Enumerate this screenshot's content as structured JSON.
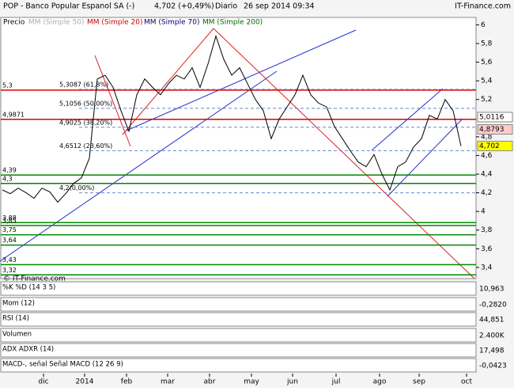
{
  "header": {
    "symbol": "POP - Banco Popular Espanol SA (-)",
    "quote": "4,702 (+0,49%)",
    "period": "Diario",
    "datetime": "26 sep 2014 09:34",
    "brand": "IT-Finance.com"
  },
  "legend": [
    "Precio",
    "MM (Simple 50)",
    "MM (Simple 20)",
    "MM (Simple 70)",
    "MM (Simple 200)"
  ],
  "watermark": "© IT-Finance.com",
  "chart_data": {
    "type": "line",
    "series": [
      {
        "name": "Precio",
        "color": "#000000",
        "values": [
          4.23,
          4.19,
          4.25,
          4.2,
          4.14,
          4.25,
          4.21,
          4.1,
          4.19,
          4.3,
          4.36,
          4.57,
          5.42,
          5.46,
          5.33,
          5.08,
          4.86,
          5.25,
          5.42,
          5.33,
          5.25,
          5.37,
          5.46,
          5.42,
          5.54,
          5.33,
          5.58,
          5.88,
          5.63,
          5.46,
          5.54,
          5.37,
          5.2,
          5.08,
          4.78,
          4.99,
          5.12,
          5.25,
          5.46,
          5.25,
          5.16,
          5.12,
          4.91,
          4.78,
          4.65,
          4.53,
          4.48,
          4.61,
          4.4,
          4.23,
          4.48,
          4.53,
          4.69,
          4.78,
          5.03,
          4.99,
          5.2,
          5.08,
          4.7
        ]
      }
    ],
    "ylim": [
      3.28,
      6.08
    ],
    "yticks": [
      {
        "value": 3.4,
        "label": "3,4"
      },
      {
        "value": 3.6,
        "label": "3,6"
      },
      {
        "value": 3.8,
        "label": "3,8"
      },
      4,
      {
        "value": 4.2,
        "label": "4,2"
      },
      {
        "value": 4.4,
        "label": "4,4"
      },
      {
        "value": 4.6,
        "label": "4,6"
      },
      {
        "value": 4.8,
        "label": "4,8"
      },
      {
        "value": 5.2,
        "label": "5,2"
      },
      {
        "value": 5.4,
        "label": "5,4"
      },
      {
        "value": 5.6,
        "label": "5,6"
      },
      {
        "value": 5.8,
        "label": "5,8"
      },
      6
    ],
    "xlabels": [
      "dic",
      "2014",
      "feb",
      "mar",
      "abr",
      "may",
      "jun",
      "jul",
      "ago",
      "sep",
      "oct"
    ],
    "levels": [
      {
        "value": 5.3,
        "label": "5,3",
        "color": "#dd0000"
      },
      {
        "value": 4.9871,
        "label": "4,9871",
        "color": "#dd0000"
      },
      {
        "value": 4.39,
        "label": "4,39",
        "color": "#008800"
      },
      {
        "value": 4.3,
        "label": "4,3",
        "color": "#008800"
      },
      {
        "value": 3.88,
        "label": "3,88",
        "color": "#008800"
      },
      {
        "value": 3.85,
        "label": "3,85",
        "color": "#008800"
      },
      {
        "value": 3.75,
        "label": "3,75",
        "color": "#008800"
      },
      {
        "value": 3.64,
        "label": "3,64",
        "color": "#008800"
      },
      {
        "value": 3.43,
        "label": "3,43",
        "color": "#008800"
      },
      {
        "value": 3.32,
        "label": "3,32",
        "color": "#008800"
      }
    ],
    "fib": [
      {
        "value": 5.3087,
        "label": "5,3087 (61,8%)"
      },
      {
        "value": 5.1056,
        "label": "5,1056 (50,00%)"
      },
      {
        "value": 4.9025,
        "label": "4,9025 (38,20%)"
      },
      {
        "value": 4.6512,
        "label": "4,6512 (23,60%)"
      },
      {
        "value": 4.2,
        "label": "4,2(0,00%)"
      }
    ],
    "markers": [
      {
        "value": 5.0116,
        "label": "5,0116",
        "color": "#ffffff"
      },
      {
        "value": 4.8793,
        "label": "4,8793",
        "color": "#ffcccc"
      },
      {
        "value": 4.702,
        "label": "4,702",
        "color": "#ffff00"
      }
    ]
  },
  "panels": [
    {
      "label": "%K %D (14 3 5)",
      "value": "10,963"
    },
    {
      "label": "Mom (12)",
      "value": "-0,2820"
    },
    {
      "label": "RSI (14)",
      "value": "44,851"
    },
    {
      "label": "Volumen",
      "value": "2.400K"
    },
    {
      "label": "ADX ADXR (14)",
      "value": "17,498"
    },
    {
      "label": "MACD-, señal  Señal  MACD (12 26 9)",
      "value": "-0,0423"
    }
  ]
}
